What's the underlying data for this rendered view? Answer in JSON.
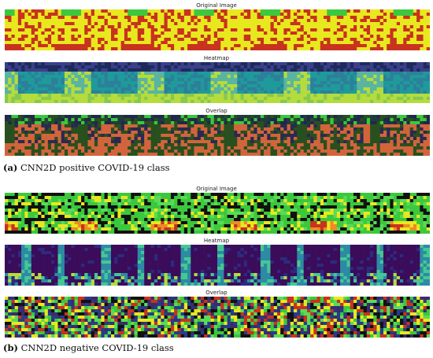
{
  "panels": [
    {
      "label": "(a)",
      "caption": "CNN2D positive COVID-19 class",
      "rows": [
        {
          "title": "Original Image",
          "style": "orig_a"
        },
        {
          "title": "Heatmap",
          "style": "heat_a"
        },
        {
          "title": "Overlap",
          "style": "over_a"
        }
      ]
    },
    {
      "label": "(b)",
      "caption": "CNN2D negative COVID-19 class",
      "rows": [
        {
          "title": "Original Image",
          "style": "orig_b"
        },
        {
          "title": "Heatmap",
          "style": "heat_b"
        },
        {
          "title": "Overlap",
          "style": "over_b"
        }
      ]
    }
  ],
  "colors": {
    "yellow": "#e8e81e",
    "red": "#c8321e",
    "green": "#3cc83c",
    "dark_navy": "#1e2a5a",
    "purple_dark": "#3a0c5a",
    "teal": "#1e9a9a",
    "light_green": "#b4dc3c",
    "overlap_green": "#28501e",
    "overlap_orange": "#d2643c"
  }
}
